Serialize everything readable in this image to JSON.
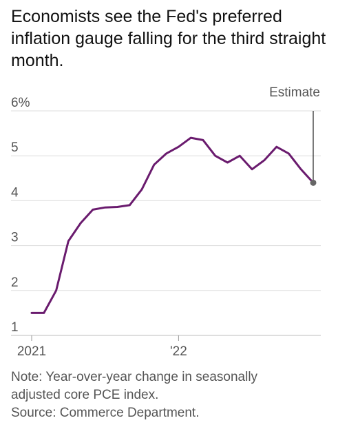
{
  "chart_data": {
    "type": "line",
    "title": "Economists see the Fed's preferred inflation gauge falling for the third straight month.",
    "xlabel": "",
    "ylabel": "",
    "ylim": [
      1,
      6
    ],
    "xlim": [
      "2021-01",
      "2022-12"
    ],
    "y_ticks": [
      {
        "value": 6,
        "label": "6%"
      },
      {
        "value": 5,
        "label": "5"
      },
      {
        "value": 4,
        "label": "4"
      },
      {
        "value": 3,
        "label": "3"
      },
      {
        "value": 2,
        "label": "2"
      },
      {
        "value": 1,
        "label": "1"
      }
    ],
    "x_ticks": [
      {
        "value": "2021-01",
        "label": "2021"
      },
      {
        "value": "2022-01",
        "label": "'22"
      }
    ],
    "grid": "horizontal",
    "series": [
      {
        "x": [
          "2021-01",
          "2021-02",
          "2021-03",
          "2021-04",
          "2021-05",
          "2021-06",
          "2021-07",
          "2021-08",
          "2021-09",
          "2021-10",
          "2021-11",
          "2021-12",
          "2022-01",
          "2022-02",
          "2022-03",
          "2022-04",
          "2022-05",
          "2022-06",
          "2022-07",
          "2022-08",
          "2022-09",
          "2022-10",
          "2022-11",
          "2022-12"
        ],
        "values": [
          1.5,
          1.5,
          2.0,
          3.1,
          3.5,
          3.8,
          3.85,
          3.86,
          3.9,
          4.25,
          4.8,
          5.05,
          5.2,
          5.4,
          5.35,
          5.0,
          4.85,
          5.0,
          4.7,
          4.9,
          5.2,
          5.05,
          4.7,
          4.4
        ],
        "color": "#6a1b6e"
      }
    ],
    "annotations": [
      {
        "text": "Estimate",
        "x": "2022-12",
        "y": 4.4,
        "marker_color": "#666666"
      }
    ],
    "note": "Note: Year-over-year change in seasonally adjusted core PCE index.",
    "source": "Source: Commerce Department."
  },
  "note_lines": [
    "Note: Year-over-year change in seasonally",
    "adjusted core PCE index."
  ],
  "source_text": "Source: Commerce Department."
}
